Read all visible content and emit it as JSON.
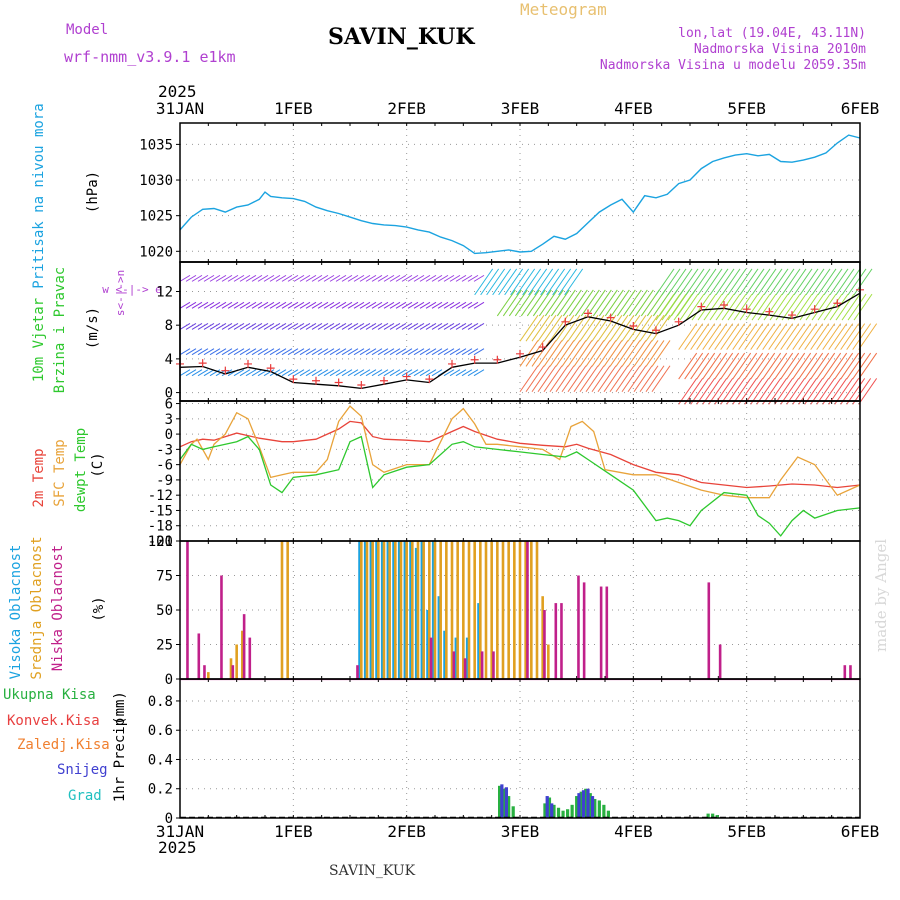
{
  "header": {
    "model_label": "Model",
    "model_name": "wrf-nmm_v3.9.1 e1km",
    "station": "SAVIN_KUK",
    "meteogram_label": "Meteogram",
    "lonlat": "lon,lat (19.04E, 43.11N)",
    "elevation": "Nadmorska Visina 2010m",
    "model_elevation": "Nadmorska Visina u modelu 2059.35m",
    "year": "2025",
    "footer_station": "SAVIN_KUK",
    "watermark": "made by Angel"
  },
  "colors": {
    "pressure": "#1ba3e0",
    "temp2m": "#e8443a",
    "sfc": "#e8a33a",
    "dewpt": "#2ec82e",
    "high_cloud": "#1ba3e0",
    "mid_cloud": "#e0a020",
    "low_cloud": "#c0208a",
    "total_precip": "#28b040",
    "conv_precip": "#e84040",
    "frz_precip": "#f08030",
    "snow": "#4040d0",
    "hail": "#20c0c0",
    "purple_text": "#b040d0",
    "gold_text": "#e8c070"
  },
  "chart_data": [
    {
      "type": "line",
      "x_ticks": [
        "31JAN",
        "1FEB",
        "2FEB",
        "3FEB",
        "4FEB",
        "5FEB",
        "6FEB"
      ],
      "ylabel": "Pritisak na nivou mora",
      "unit": "(hPa)",
      "ylim": [
        1018.5,
        1038
      ],
      "yticks": [
        1020,
        1025,
        1030,
        1035
      ],
      "grid": true,
      "series": [
        {
          "x": [
            0,
            0.1,
            0.2,
            0.3,
            0.4,
            0.5,
            0.6,
            0.7,
            0.75,
            0.8,
            0.9,
            1.0,
            1.1,
            1.2,
            1.3,
            1.4,
            1.5,
            1.6,
            1.7,
            1.8,
            1.9,
            2.0,
            2.1,
            2.2,
            2.3,
            2.4,
            2.5,
            2.6,
            2.7,
            2.8,
            2.9,
            3.0,
            3.1,
            3.2,
            3.3,
            3.4,
            3.5,
            3.6,
            3.7,
            3.8,
            3.9,
            4.0,
            4.1,
            4.2,
            4.3,
            4.4,
            4.5,
            4.6,
            4.7,
            4.8,
            4.9,
            5.0,
            5.1,
            5.2,
            5.3,
            5.4,
            5.5,
            5.6,
            5.7,
            5.8,
            5.9,
            6.0
          ],
          "values": [
            1023.0,
            1024.8,
            1025.9,
            1026.0,
            1025.5,
            1026.2,
            1026.5,
            1027.3,
            1028.3,
            1027.7,
            1027.5,
            1027.4,
            1027.0,
            1026.2,
            1025.7,
            1025.3,
            1024.8,
            1024.3,
            1023.9,
            1023.7,
            1023.6,
            1023.4,
            1023.0,
            1022.7,
            1022.0,
            1021.5,
            1020.8,
            1019.7,
            1019.8,
            1020.0,
            1020.2,
            1019.9,
            1020.0,
            1021.0,
            1022.1,
            1021.7,
            1022.5,
            1024.0,
            1025.5,
            1026.5,
            1027.3,
            1025.5,
            1027.8,
            1027.5,
            1028.0,
            1029.5,
            1030.0,
            1031.6,
            1032.6,
            1033.1,
            1033.5,
            1033.7,
            1033.4,
            1033.6,
            1032.6,
            1032.5,
            1032.8,
            1033.2,
            1033.8,
            1035.2,
            1036.3,
            1035.9
          ]
        }
      ]
    },
    {
      "type": "line",
      "x_ticks": [
        "31JAN",
        "1FEB",
        "2FEB",
        "3FEB",
        "4FEB",
        "5FEB",
        "6FEB"
      ],
      "ylabel": "10m Vjetar Brzina i Pravac",
      "unit": "(m/s)",
      "ylim": [
        -1,
        15.5
      ],
      "yticks": [
        0,
        4,
        8,
        12
      ],
      "grid": true,
      "legend": "w <-|-> e",
      "series": [
        {
          "x": [
            0,
            0.2,
            0.4,
            0.6,
            0.8,
            1.0,
            1.2,
            1.4,
            1.6,
            1.8,
            2.0,
            2.2,
            2.4,
            2.6,
            2.8,
            3.0,
            3.2,
            3.4,
            3.6,
            3.8,
            4.0,
            4.2,
            4.4,
            4.6,
            4.8,
            5.0,
            5.2,
            5.4,
            5.6,
            5.8,
            6.0
          ],
          "values": [
            3.0,
            3.1,
            2.2,
            3.0,
            2.5,
            1.2,
            1.0,
            0.8,
            0.5,
            1.0,
            1.5,
            1.2,
            3.0,
            3.5,
            3.5,
            4.2,
            5.0,
            8.0,
            9.0,
            8.5,
            7.5,
            7.0,
            8.0,
            9.8,
            10.0,
            9.5,
            9.2,
            8.8,
            9.5,
            10.2,
            11.8
          ]
        }
      ]
    },
    {
      "type": "line",
      "x_ticks": [
        "31JAN",
        "1FEB",
        "2FEB",
        "3FEB",
        "4FEB",
        "5FEB",
        "6FEB"
      ],
      "unit": "(C)",
      "ylim": [
        -21,
        6.5
      ],
      "yticks": [
        6,
        3,
        0,
        -3,
        -6,
        -9,
        -12,
        -15,
        -18,
        -21
      ],
      "grid": true,
      "series": [
        {
          "name": "2m Temp",
          "x": [
            0,
            0.1,
            0.2,
            0.3,
            0.5,
            0.7,
            0.9,
            1.0,
            1.2,
            1.4,
            1.5,
            1.6,
            1.7,
            1.8,
            2.0,
            2.2,
            2.4,
            2.5,
            2.6,
            2.8,
            3.0,
            3.2,
            3.4,
            3.5,
            3.6,
            3.8,
            4.0,
            4.2,
            4.4,
            4.6,
            4.8,
            5.0,
            5.2,
            5.4,
            5.6,
            5.8,
            6.0
          ],
          "values": [
            -2.5,
            -1.5,
            -1.0,
            -1.2,
            0.2,
            -0.8,
            -1.5,
            -1.5,
            -1.0,
            1.0,
            2.5,
            2.2,
            -0.5,
            -1.0,
            -1.2,
            -1.5,
            0.5,
            1.5,
            0.5,
            -1.0,
            -1.8,
            -2.2,
            -2.5,
            -2.0,
            -2.8,
            -4.0,
            -6.0,
            -7.5,
            -8.0,
            -9.5,
            -10.0,
            -10.5,
            -10.2,
            -9.8,
            -10.0,
            -10.5,
            -10.0
          ]
        },
        {
          "name": "SFC Temp",
          "x": [
            0,
            0.1,
            0.15,
            0.25,
            0.3,
            0.4,
            0.5,
            0.6,
            0.7,
            0.8,
            0.9,
            1.0,
            1.2,
            1.3,
            1.4,
            1.5,
            1.6,
            1.7,
            1.8,
            2.0,
            2.2,
            2.4,
            2.5,
            2.6,
            2.7,
            2.8,
            3.0,
            3.2,
            3.35,
            3.45,
            3.55,
            3.65,
            3.75,
            4.0,
            4.2,
            4.4,
            4.6,
            4.8,
            5.0,
            5.2,
            5.3,
            5.45,
            5.6,
            5.8,
            6.0
          ],
          "values": [
            -6.0,
            -2.0,
            -1.0,
            -5.0,
            -2.0,
            0.0,
            4.2,
            3.0,
            -2.5,
            -8.5,
            -8.0,
            -7.5,
            -7.5,
            -5.0,
            2.5,
            5.5,
            3.5,
            -6.0,
            -7.5,
            -6.0,
            -6.0,
            3.0,
            5.0,
            2.0,
            -2.0,
            -2.0,
            -2.5,
            -3.0,
            -5.0,
            1.5,
            2.5,
            0.5,
            -7.0,
            -8.0,
            -8.0,
            -9.5,
            -11.0,
            -12.0,
            -12.5,
            -12.5,
            -9.0,
            -4.5,
            -6.0,
            -12.0,
            -10.0
          ]
        },
        {
          "name": "dewpt Temp",
          "x": [
            0,
            0.1,
            0.2,
            0.3,
            0.5,
            0.6,
            0.7,
            0.8,
            0.9,
            1.0,
            1.2,
            1.4,
            1.5,
            1.6,
            1.7,
            1.8,
            2.0,
            2.2,
            2.4,
            2.5,
            2.6,
            2.8,
            3.0,
            3.2,
            3.4,
            3.5,
            3.6,
            3.8,
            4.0,
            4.2,
            4.3,
            4.4,
            4.5,
            4.6,
            4.8,
            5.0,
            5.1,
            5.2,
            5.3,
            5.4,
            5.5,
            5.6,
            5.8,
            6.0
          ],
          "values": [
            -5.0,
            -2.0,
            -3.0,
            -2.5,
            -1.5,
            -0.5,
            -3.0,
            -10.0,
            -11.5,
            -8.5,
            -8.0,
            -7.0,
            -1.5,
            -0.5,
            -10.5,
            -8.0,
            -6.5,
            -6.0,
            -2.0,
            -1.5,
            -2.5,
            -3.0,
            -3.5,
            -4.0,
            -4.5,
            -3.5,
            -5.0,
            -8.0,
            -11.0,
            -17.0,
            -16.5,
            -17.0,
            -18.0,
            -15.0,
            -11.5,
            -12.0,
            -16.0,
            -17.5,
            -20.0,
            -17.0,
            -15.0,
            -16.5,
            -15.0,
            -14.5
          ]
        }
      ]
    },
    {
      "type": "bar",
      "x_ticks": [
        "31JAN",
        "1FEB",
        "2FEB",
        "3FEB",
        "4FEB",
        "5FEB",
        "6FEB"
      ],
      "unit": "(%)",
      "ylim": [
        0,
        100
      ],
      "yticks": [
        0,
        25,
        50,
        75,
        100
      ],
      "grid": true,
      "series": [
        {
          "name": "Visoka Oblacnost",
          "x": [
            1.6,
            1.65,
            1.7,
            1.75,
            1.8,
            1.85,
            1.9,
            1.95,
            2.0,
            2.05,
            2.1,
            2.15,
            2.2,
            2.25,
            2.3,
            2.35,
            2.45,
            2.55,
            2.65
          ],
          "values": [
            100,
            100,
            100,
            100,
            100,
            100,
            100,
            100,
            100,
            100,
            95,
            100,
            50,
            100,
            60,
            35,
            30,
            30,
            55
          ]
        },
        {
          "name": "Srednja Oblacnost",
          "x": [
            0.25,
            0.45,
            0.5,
            0.55,
            0.9,
            0.95,
            1.6,
            1.65,
            1.7,
            1.75,
            1.8,
            1.85,
            1.9,
            1.95,
            2.0,
            2.05,
            2.1,
            2.15,
            2.2,
            2.25,
            2.3,
            2.35,
            2.4,
            2.45,
            2.5,
            2.55,
            2.6,
            2.65,
            2.7,
            2.75,
            2.8,
            2.85,
            2.9,
            2.95,
            3.0,
            3.05,
            3.1,
            3.15,
            3.2,
            3.25
          ],
          "values": [
            5,
            15,
            25,
            35,
            100,
            100,
            100,
            100,
            100,
            100,
            100,
            100,
            100,
            100,
            100,
            100,
            100,
            100,
            100,
            100,
            100,
            100,
            100,
            100,
            100,
            100,
            100,
            100,
            100,
            100,
            100,
            100,
            100,
            100,
            100,
            100,
            100,
            100,
            60,
            25
          ]
        },
        {
          "name": "Niska Oblacnost",
          "x": [
            0.05,
            0.15,
            0.2,
            0.35,
            0.45,
            0.55,
            0.6,
            1.55,
            2.2,
            2.4,
            2.5,
            2.65,
            2.75,
            3.05,
            3.2,
            3.3,
            3.35,
            3.5,
            3.55,
            3.7,
            3.75,
            4.65,
            4.75,
            5.85,
            5.9
          ],
          "values": [
            100,
            33,
            10,
            75,
            10,
            47,
            30,
            10,
            30,
            20,
            15,
            20,
            20,
            100,
            50,
            55,
            55,
            75,
            70,
            67,
            67,
            70,
            25,
            10,
            10
          ]
        }
      ]
    },
    {
      "type": "bar",
      "x_ticks": [
        "31JAN",
        "1FEB",
        "2FEB",
        "3FEB",
        "4FEB",
        "5FEB",
        "6FEB"
      ],
      "ylabel": "1hr Precip",
      "unit": "(mm)",
      "ylim": [
        0,
        0.95
      ],
      "yticks": [
        0,
        0.2,
        0.4,
        0.6,
        0.8
      ],
      "grid": true,
      "series": [
        {
          "name": "Ukupna Kisa",
          "x": [
            2.82,
            2.86,
            2.9,
            2.94,
            3.22,
            3.26,
            3.3,
            3.34,
            3.38,
            3.42,
            3.46,
            3.5,
            3.54,
            3.58,
            3.62,
            3.66,
            3.7,
            3.74,
            3.78,
            4.66,
            4.7,
            4.74
          ],
          "values": [
            0.22,
            0.2,
            0.15,
            0.08,
            0.1,
            0.14,
            0.09,
            0.07,
            0.05,
            0.06,
            0.09,
            0.15,
            0.18,
            0.2,
            0.17,
            0.13,
            0.12,
            0.09,
            0.05,
            0.03,
            0.03,
            0.02
          ]
        },
        {
          "name": "Snijeg",
          "x": [
            2.84,
            2.88,
            3.24,
            3.28,
            3.52,
            3.56,
            3.6,
            3.64
          ],
          "values": [
            0.23,
            0.21,
            0.15,
            0.1,
            0.17,
            0.19,
            0.2,
            0.15
          ]
        }
      ]
    }
  ],
  "labels": {
    "pressure_label": "Pritisak na nivou mora",
    "pressure_unit": "(hPa)",
    "wind_label_1": "10m Vjetar",
    "wind_label_2": "Brzina i Pravac",
    "wind_unit": "(m/s)",
    "wind_dir_we": "w <-|-> e",
    "wind_dir_sn": "s<-|->n",
    "temp_2m": "2m Temp",
    "temp_sfc": "SFC Temp",
    "temp_dew": "dewpt Temp",
    "temp_unit": "(C)",
    "cloud_high": "Visoka Oblacnost",
    "cloud_mid": "Srednja Oblacnost",
    "cloud_low": "Niska Oblacnost",
    "cloud_unit": "(%)",
    "pr_total": "Ukupna Kisa",
    "pr_conv": "Konvek.Kisa",
    "pr_frz": "Zaledj.Kisa",
    "pr_snow": "Snijeg",
    "pr_grad": "Grad",
    "pr_label": "1hr Precip",
    "pr_unit": "(mm)"
  }
}
